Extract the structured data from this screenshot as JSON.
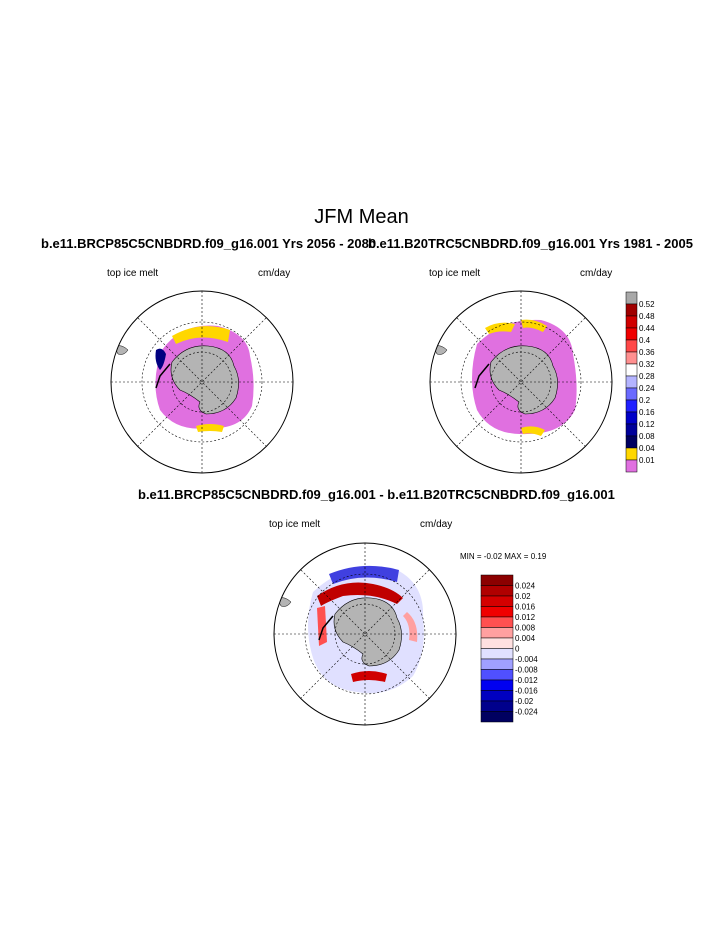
{
  "title": "JFM Mean",
  "panels": [
    {
      "case": "b.e11.BRCP85C5CNBDRD.f09_g16.001  Yrs 2056 - 2080",
      "variable": "top ice melt",
      "units": "cm/day"
    },
    {
      "case": "b.e11.B20TRC5CNBDRD.f09_g16.001  Yrs 1981 - 2005",
      "variable": "top ice melt",
      "units": "cm/day"
    }
  ],
  "difference": {
    "title": "b.e11.BRCP85C5CNBDRD.f09_g16.001 - b.e11.B20TRC5CNBDRD.f09_g16.001",
    "variable": "top ice melt",
    "units": "cm/day",
    "min_max": "MIN =  -0.02 MAX =   0.19"
  },
  "colorbar_top": {
    "labels": [
      "0.52",
      "0.48",
      "0.44",
      "0.4",
      "0.36",
      "0.32",
      "0.28",
      "0.24",
      "0.2",
      "0.16",
      "0.12",
      "0.08",
      "0.04",
      "0.01"
    ],
    "colors": [
      "#a8a8a8",
      "#a00000",
      "#d00000",
      "#f00000",
      "#ff4848",
      "#ff9090",
      "#ffffff",
      "#b4b4ff",
      "#6a6aff",
      "#2020ff",
      "#0000c8",
      "#00009a",
      "#000060",
      "#ffd700",
      "#e070e0"
    ]
  },
  "colorbar_diff": {
    "labels": [
      "0.024",
      "0.02",
      "0.016",
      "0.012",
      "0.008",
      "0.004",
      "0",
      "-0.004",
      "-0.008",
      "-0.012",
      "-0.016",
      "-0.02",
      "-0.024"
    ],
    "colors": [
      "#8b0000",
      "#b00000",
      "#d40000",
      "#f00000",
      "#ff5050",
      "#ffa0a0",
      "#ffe0e0",
      "#e0e0ff",
      "#a0a0ff",
      "#5050ff",
      "#0000f0",
      "#0000c0",
      "#00008c",
      "#000060"
    ]
  },
  "colors": {
    "land": "#b4b4b4",
    "pink": "#e070e0",
    "yellow": "#ffd700"
  }
}
